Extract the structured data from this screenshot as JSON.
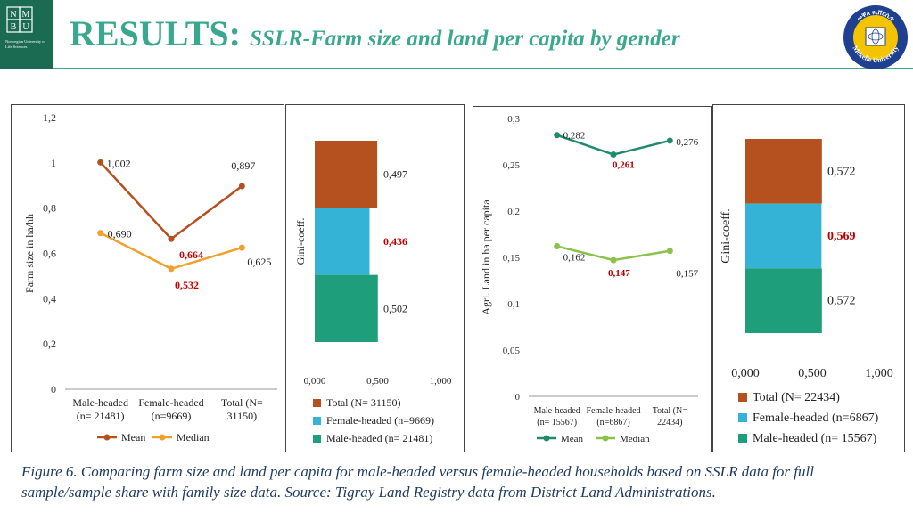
{
  "header": {
    "title_main": "RESULTS:",
    "title_sub": "SSLR-Farm size and land per capita by gender",
    "left_logo_text": "Norwegian University of Life Sciences",
    "left_logo_letters": [
      "N",
      "M",
      "B",
      "U"
    ],
    "right_logo_text": "Mekelle University",
    "right_logo_top_text": "መቐለ ዩኒቨርሲቲ"
  },
  "colors": {
    "accent": "#3aa88e",
    "mean_farm": "#b5501f",
    "median_farm": "#f0a02b",
    "mean_land": "#1e8c6c",
    "median_land": "#8bc34a",
    "bar_total": "#b5501f",
    "bar_female": "#35b3d6",
    "bar_male": "#1e9e7a",
    "highlight": "#c00000"
  },
  "chart_data": [
    {
      "type": "line",
      "ylabel": "Farm size in ha/hh",
      "ylim": [
        0,
        1.2
      ],
      "yticks": [
        "0",
        "0,2",
        "0,4",
        "0,6",
        "0,8",
        "1",
        "1,2"
      ],
      "categories": [
        [
          "Male-headed",
          "(n= 21481)"
        ],
        [
          "Female-headed",
          "(n=9669)"
        ],
        [
          "Total (N=",
          "31150)"
        ]
      ],
      "series": [
        {
          "name": "Mean",
          "values": [
            1.002,
            0.664,
            0.897
          ],
          "labels": [
            "1,002",
            "0,664",
            "0,897"
          ]
        },
        {
          "name": "Median",
          "values": [
            0.69,
            0.532,
            0.625
          ],
          "labels": [
            "0,690",
            "0,532",
            "0,625"
          ]
        }
      ],
      "legend": [
        "Mean",
        "Median"
      ]
    },
    {
      "type": "bar",
      "orientation": "horizontal",
      "ylabel": "Gini-coeff.",
      "xlim": [
        0,
        1
      ],
      "xticks": [
        "0,000",
        "0,500",
        "1,000"
      ],
      "categories": [
        "Total (N= 31150)",
        "Female-headed (n=9669)",
        "Male-headed (n= 21481)"
      ],
      "values": [
        0.497,
        0.436,
        0.502
      ],
      "labels": [
        "0,497",
        "0,436",
        "0,502"
      ],
      "legend": [
        "Total (N= 31150)",
        "Female-headed (n=9669)",
        "Male-headed (n= 21481)"
      ]
    },
    {
      "type": "line",
      "ylabel": "Agri. Land in ha per capita",
      "ylim": [
        0,
        0.3
      ],
      "yticks": [
        "0",
        "0,05",
        "0,1",
        "0,15",
        "0,2",
        "0,25",
        "0,3"
      ],
      "categories": [
        [
          "Male-headed",
          "(n= 15567)"
        ],
        [
          "Female-headed",
          "(n=6867)"
        ],
        [
          "Total (N=",
          "22434)"
        ]
      ],
      "series": [
        {
          "name": "Mean",
          "values": [
            0.282,
            0.261,
            0.276
          ],
          "labels": [
            "0,282",
            "0,261",
            "0,276"
          ]
        },
        {
          "name": "Median",
          "values": [
            0.162,
            0.147,
            0.157
          ],
          "labels": [
            "0,162",
            "0,147",
            "0,157"
          ]
        }
      ],
      "legend": [
        "Mean",
        "Median"
      ]
    },
    {
      "type": "bar",
      "orientation": "horizontal",
      "ylabel": "Gini-coeff.",
      "xlim": [
        0,
        1
      ],
      "xticks": [
        "0,000",
        "0,500",
        "1,000"
      ],
      "categories": [
        "Total (N= 22434)",
        "Female-headed (n=6867)",
        "Male-headed (n= 15567)"
      ],
      "values": [
        0.572,
        0.569,
        0.572
      ],
      "labels": [
        "0,572",
        "0,569",
        "0,572"
      ],
      "legend": [
        "Total (N= 22434)",
        "Female-headed (n=6867)",
        "Male-headed (n= 15567)"
      ]
    }
  ],
  "caption": "Figure 6. Comparing farm size and land per capita for male-headed versus female-headed households based on SSLR data for full sample/sample share with family size data. Source: Tigray Land Registry data from District Land Administrations."
}
